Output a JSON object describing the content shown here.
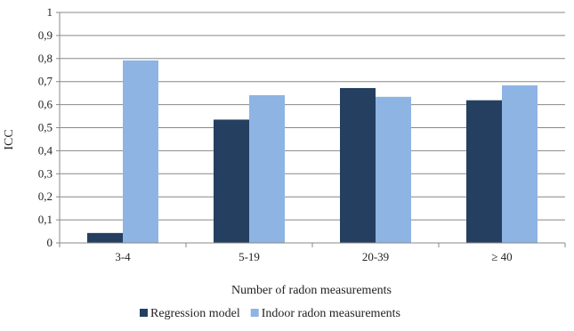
{
  "chart_data": {
    "type": "bar",
    "title": "",
    "xlabel": "Number of radon measurements",
    "ylabel": "ICC",
    "ylim": [
      0,
      1
    ],
    "ytick_labels": [
      "0",
      "0,1",
      "0,2",
      "0,3",
      "0,4",
      "0,5",
      "0,6",
      "0,7",
      "0,8",
      "0,9",
      "1"
    ],
    "categories": [
      "3-4",
      "5-19",
      "20-39",
      "≥ 40"
    ],
    "series": [
      {
        "name": "Regression model",
        "color": "#243f60",
        "values": [
          0.043,
          0.535,
          0.672,
          0.619
        ]
      },
      {
        "name": "Indoor radon measurements",
        "color": "#8eb4e3",
        "values": [
          0.792,
          0.641,
          0.634,
          0.684
        ]
      }
    ],
    "grid": true,
    "legend_position": "bottom-center"
  }
}
